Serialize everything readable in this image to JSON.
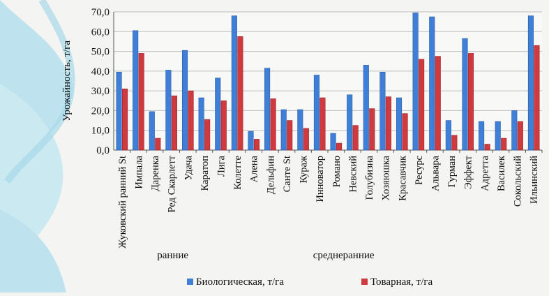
{
  "chart_data": {
    "type": "bar",
    "title": "",
    "xlabel": "",
    "ylabel": "Урожайность, т/га",
    "ylim": [
      0,
      70
    ],
    "ytick_step": 10,
    "ytick_labels": [
      "0,0",
      "10,0",
      "20,0",
      "30,0",
      "40,0",
      "50,0",
      "60,0",
      "70,0"
    ],
    "grid": true,
    "categories": [
      "Жуковский ранний St",
      "Импала",
      "Даренка",
      "Ред Скарлетт",
      "Удача",
      "Каратоп",
      "Лига",
      "Колетте",
      "Алена",
      "Дельфин",
      "Санте St",
      "Кураж",
      "Инноватор",
      "Романо",
      "Невский",
      "Голубизна",
      "Хозяюшка",
      "Красавчик",
      "Ресурс",
      "Альвара",
      "Гурман",
      "Эффект",
      "Адретта",
      "Василек",
      "Сокольский",
      "Ильинский"
    ],
    "series": [
      {
        "name": "Биологическая, т/га",
        "color": "#3f7fd8",
        "values": [
          39.5,
          60.5,
          19.5,
          40.5,
          50.5,
          26.5,
          36.5,
          68.0,
          9.5,
          41.5,
          20.5,
          20.5,
          38.0,
          8.5,
          28.0,
          43.0,
          39.5,
          26.5,
          69.5,
          67.5,
          15.0,
          56.5,
          14.5,
          14.5,
          20.0,
          68.0
        ]
      },
      {
        "name": "Товарная, т/га",
        "color": "#cf3a3e",
        "values": [
          31.0,
          49.0,
          6.0,
          27.5,
          30.0,
          15.5,
          25.0,
          57.5,
          5.5,
          26.0,
          15.0,
          11.0,
          26.5,
          3.5,
          12.5,
          21.0,
          27.0,
          18.5,
          46.0,
          47.5,
          7.5,
          49.0,
          3.0,
          6.0,
          14.5,
          53.0
        ]
      }
    ],
    "groups": [
      {
        "label": "ранние",
        "first": 0,
        "last": 6
      },
      {
        "label": "среднеранние",
        "first": 7,
        "last": 25
      }
    ],
    "legend_position": "bottom"
  }
}
